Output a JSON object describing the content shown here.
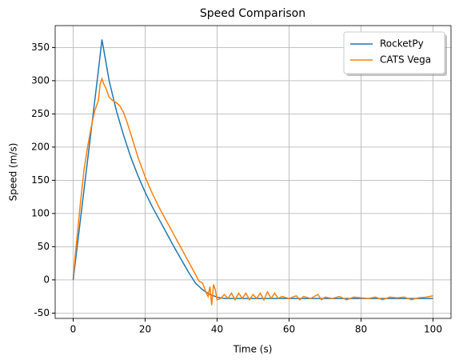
{
  "chart_data": {
    "type": "line",
    "title": "Speed Comparison",
    "x_label": "Time (s)",
    "y_label": "Speed (m/s)",
    "xlim": [
      -5,
      105
    ],
    "ylim": [
      -58,
      383
    ],
    "xticks": [
      0,
      20,
      40,
      60,
      80,
      100
    ],
    "yticks": [
      -50,
      0,
      50,
      100,
      150,
      200,
      250,
      300,
      350
    ],
    "grid": true,
    "legend": "upper right",
    "series": [
      {
        "name": "RocketPy",
        "color": "#1f77b4",
        "x": [
          0,
          1,
          2,
          3,
          4,
          5,
          6,
          7,
          8,
          10,
          12,
          14,
          16,
          18,
          20,
          22,
          24,
          26,
          28,
          30,
          32,
          34,
          36,
          38,
          40,
          42,
          45,
          50,
          60,
          70,
          80,
          90,
          100
        ],
        "values": [
          0,
          45,
          90,
          135,
          180,
          225,
          270,
          315,
          362,
          300,
          255,
          218,
          185,
          157,
          132,
          110,
          90,
          70,
          50,
          31,
          12,
          -5,
          -15,
          -22,
          -26,
          -28,
          -28,
          -28,
          -28,
          -28,
          -28,
          -28,
          -28
        ]
      },
      {
        "name": "CATS Vega",
        "color": "#ff7f0e",
        "x": [
          0,
          1,
          2,
          3,
          4,
          5,
          6,
          7,
          7.5,
          8,
          8.5,
          9,
          10,
          11,
          12,
          13,
          14,
          15,
          16,
          18,
          20,
          22,
          24,
          26,
          28,
          30,
          32,
          34,
          35,
          36,
          37,
          37.5,
          38,
          38.5,
          39,
          39.5,
          40,
          41,
          42,
          43,
          44,
          45,
          46,
          47,
          48,
          49,
          50,
          51,
          52,
          53,
          54,
          55,
          56,
          57,
          58,
          60,
          62,
          63,
          64,
          66,
          68,
          69,
          70,
          72,
          74,
          76,
          78,
          80,
          82,
          84,
          86,
          88,
          90,
          92,
          94,
          96,
          98,
          99,
          100
        ],
        "values": [
          5,
          60,
          115,
          165,
          200,
          230,
          255,
          270,
          295,
          303,
          295,
          290,
          275,
          270,
          267,
          262,
          252,
          237,
          220,
          185,
          155,
          130,
          108,
          88,
          68,
          48,
          28,
          8,
          -2,
          -5,
          -20,
          -25,
          -10,
          -38,
          -7,
          -15,
          -30,
          -28,
          -22,
          -28,
          -20,
          -30,
          -20,
          -28,
          -20,
          -30,
          -22,
          -28,
          -20,
          -30,
          -18,
          -28,
          -20,
          -28,
          -25,
          -28,
          -24,
          -30,
          -25,
          -28,
          -22,
          -30,
          -26,
          -28,
          -25,
          -30,
          -26,
          -27,
          -28,
          -26,
          -30,
          -26,
          -27,
          -26,
          -30,
          -27,
          -26,
          -25,
          -24
        ]
      }
    ]
  }
}
